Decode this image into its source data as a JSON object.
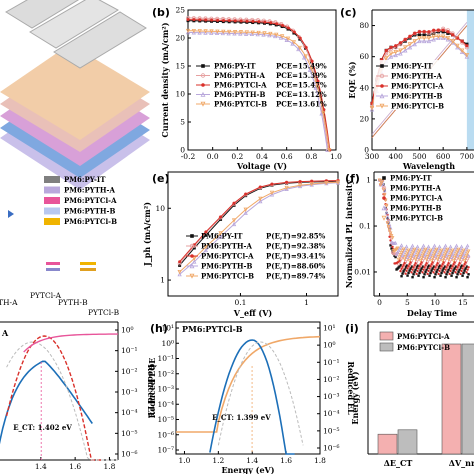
{
  "colors": {
    "black": "#111111",
    "pink": "#e6a0a0",
    "red": "#d9302a",
    "lavender": "#b9a8dc",
    "orange": "#f0a868",
    "magenta": "#e8559a",
    "gold": "#f0b400",
    "gray": "#7f7f7f",
    "blue": "#1c6fb8",
    "lightblue": "#a9d3ee"
  },
  "panels": {
    "b": {
      "label": "(b)",
      "xlabel": "Voltage (V)",
      "ylabel": "Current density (mA/cm²)",
      "xticks": [
        "-0.2",
        "0.0",
        "0.2",
        "0.4",
        "0.6",
        "0.8",
        "1.0"
      ],
      "yticks": [
        "0",
        "5",
        "10",
        "15",
        "20",
        "25"
      ],
      "legend": [
        {
          "name": "PM6:PY-IT",
          "pce": "PCE=15.49%"
        },
        {
          "name": "PM6:PYTH-A",
          "pce": "PCE=15.39%"
        },
        {
          "name": "PM6:PYTCl-A",
          "pce": "PCE=15.47%"
        },
        {
          "name": "PM6:PYTH-B",
          "pce": "PCE=13.12%"
        },
        {
          "name": "PM6:PYTCl-B",
          "pce": "PCE=13.61%"
        }
      ]
    },
    "c": {
      "label": "(c)",
      "xlabel": "Wavelength",
      "ylabel": "EQE (%)",
      "xticks": [
        "300",
        "400",
        "500",
        "600",
        "700"
      ],
      "yticks": [
        "0",
        "20",
        "40",
        "60",
        "80"
      ],
      "legend": [
        "PM6:PY-IT",
        "PM6:PYTH-A",
        "PM6:PYTCl-A",
        "PM6:PYTH-B",
        "PM6:PYTCl-B"
      ]
    },
    "d": {
      "legend": [
        "PM6:PY-IT",
        "PM6:PYTH-A",
        "PM6:PYTCl-A",
        "PM6:PYTH-B",
        "PM6:PYTCl-B"
      ],
      "labels": [
        "TH-A",
        "PYTCl-A",
        "PYTH-B",
        "PYTCl-B"
      ]
    },
    "e": {
      "label": "(e)",
      "xlabel": "V_eff (V)",
      "ylabel": "J_ph (mA/cm²)",
      "xticks": [
        "0.1",
        "1"
      ],
      "yticks": [
        "1",
        "10"
      ],
      "legend": [
        {
          "name": "PM6:PY-IT",
          "p": "P(E,T)=92.85%"
        },
        {
          "name": "PM6:PYTH-A",
          "p": "P(E,T)=92.38%"
        },
        {
          "name": "PM6:PYTCl-A",
          "p": "P(E,T)=93.41%"
        },
        {
          "name": "PM6:PYTH-B",
          "p": "P(E,T)=88.60%"
        },
        {
          "name": "PM6:PYTCl-B",
          "p": "P(E,T)=89.74%"
        }
      ]
    },
    "f": {
      "label": "(f)",
      "xlabel": "Delay Time",
      "ylabel": "Normalized PL intensity",
      "xticks": [
        "0",
        "5",
        "10",
        "15"
      ],
      "yticks": [
        "0.01",
        "0.1",
        "1"
      ],
      "legend": [
        "PM6:PY-IT",
        "PM6:PYTH-A",
        "PM6:PYTCl-A",
        "PM6:PYTH-B",
        "PM6:PYTCl-B"
      ]
    },
    "g": {
      "tag": "A",
      "xticks": [
        "1.4",
        "1.6",
        "1.8"
      ],
      "y2label": "Reduced EL",
      "y2ticks": [
        "10⁰",
        "10⁻¹",
        "10⁻²",
        "10⁻³",
        "10⁻⁴",
        "10⁻⁵",
        "10⁻⁶"
      ],
      "ect": "E_CT: 1.402 eV"
    },
    "h": {
      "label": "(h)",
      "title": "PM6:PYTCl-B",
      "xlabel": "Energy (eV)",
      "ylabel": "Reduced EQE",
      "y2label": "Reduced EL",
      "xticks": [
        "1.0",
        "1.2",
        "1.4",
        "1.6",
        "1.8"
      ],
      "yticks": [
        "10¹",
        "10⁰",
        "10⁻¹",
        "10⁻²",
        "10⁻³",
        "10⁻⁴",
        "10⁻⁵",
        "10⁻⁶",
        "10⁻⁷"
      ],
      "y2ticks": [
        "10¹",
        "10⁰",
        "10⁻¹",
        "10⁻²",
        "10⁻³",
        "10⁻⁴",
        "10⁻⁵",
        "10⁻⁶"
      ],
      "ect": "E_CT: 1.399 eV"
    },
    "i": {
      "label": "(i)",
      "ylabel": "Energy (eV)",
      "legend": [
        "PM6:PYTCl-A",
        "PM6:PYTCl-B"
      ],
      "xcats": [
        "ΔE_CT",
        "ΔV_nr"
      ]
    }
  },
  "chart_data": [
    {
      "type": "line",
      "panel": "b",
      "xlabel": "Voltage (V)",
      "ylabel": "Current density (mA/cm²)",
      "xlim": [
        -0.2,
        1.0
      ],
      "ylim": [
        0,
        25
      ],
      "series": [
        {
          "name": "PM6:PY-IT",
          "jsc": 23.1,
          "voc": 0.945,
          "shape": [
            23.1,
            22.9,
            22.5,
            21.4,
            17.0,
            9.0,
            0
          ],
          "x": [
            -0.2,
            0.0,
            0.2,
            0.4,
            0.6,
            0.8,
            0.945
          ]
        },
        {
          "name": "PM6:PYTH-A",
          "jsc": 23.6,
          "voc": 0.935,
          "x": [
            -0.2,
            0.0,
            0.2,
            0.4,
            0.6,
            0.8,
            0.935
          ],
          "values": [
            23.6,
            23.4,
            22.9,
            21.6,
            17.0,
            8.5,
            0
          ]
        },
        {
          "name": "PM6:PYTCl-A",
          "jsc": 23.3,
          "voc": 0.95,
          "x": [
            -0.2,
            0.0,
            0.2,
            0.4,
            0.6,
            0.8,
            0.95
          ],
          "values": [
            23.3,
            23.1,
            22.7,
            21.5,
            17.2,
            9.2,
            0
          ]
        },
        {
          "name": "PM6:PYTH-B",
          "jsc": 21.0,
          "voc": 0.93,
          "x": [
            -0.2,
            0.0,
            0.2,
            0.4,
            0.6,
            0.8,
            0.93
          ],
          "values": [
            21.0,
            20.7,
            20.0,
            18.4,
            14.5,
            7.2,
            0
          ]
        },
        {
          "name": "PM6:PYTCl-B",
          "jsc": 21.3,
          "voc": 0.945,
          "x": [
            -0.2,
            0.0,
            0.2,
            0.4,
            0.6,
            0.8,
            0.945
          ],
          "values": [
            21.3,
            21.0,
            20.4,
            19.0,
            15.2,
            7.8,
            0
          ]
        }
      ]
    },
    {
      "type": "line",
      "panel": "c",
      "xlabel": "Wavelength",
      "ylabel": "EQE (%)",
      "xlim": [
        300,
        700
      ],
      "ylim": [
        0,
        90
      ],
      "x": [
        300,
        320,
        340,
        360,
        380,
        400,
        420,
        440,
        460,
        480,
        500,
        520,
        540,
        560,
        580,
        600,
        620,
        640,
        660,
        680,
        700
      ],
      "series": [
        {
          "name": "PM6:PY-IT",
          "values": [
            30,
            45,
            58,
            64,
            66,
            66,
            68,
            70,
            72,
            74,
            74,
            74,
            74,
            75,
            76,
            76,
            75,
            74,
            72,
            70,
            68
          ]
        },
        {
          "name": "PM6:PYTH-A",
          "values": [
            28,
            42,
            55,
            62,
            65,
            66,
            68,
            71,
            73,
            75,
            76,
            76,
            75,
            76,
            77,
            78,
            77,
            75,
            72,
            69,
            66
          ]
        },
        {
          "name": "PM6:PYTCl-A",
          "values": [
            30,
            46,
            58,
            64,
            66,
            67,
            69,
            71,
            73,
            75,
            76,
            76,
            76,
            77,
            77,
            77,
            76,
            74,
            72,
            70,
            67
          ]
        },
        {
          "name": "PM6:PYTH-B",
          "values": [
            26,
            38,
            50,
            57,
            60,
            61,
            62,
            64,
            66,
            68,
            70,
            70,
            70,
            71,
            72,
            72,
            71,
            69,
            66,
            63,
            60
          ]
        },
        {
          "name": "PM6:PYTCl-B",
          "values": [
            27,
            40,
            52,
            59,
            62,
            63,
            64,
            66,
            68,
            70,
            72,
            72,
            72,
            73,
            73,
            73,
            72,
            70,
            67,
            64,
            61
          ]
        }
      ]
    },
    {
      "type": "line",
      "panel": "e",
      "xlabel": "V_eff (V)",
      "ylabel": "J_ph (mA/cm²)",
      "xscale": "log",
      "yscale": "log",
      "xlim": [
        0.01,
        3
      ],
      "ylim": [
        1,
        30
      ],
      "x": [
        0.012,
        0.02,
        0.03,
        0.05,
        0.08,
        0.12,
        0.2,
        0.3,
        0.5,
        0.8,
        1.2,
        2.0,
        3.0
      ],
      "series": [
        {
          "name": "PM6:PY-IT",
          "values": [
            1.6,
            2.8,
            4.2,
            7.0,
            11.0,
            15.0,
            19.0,
            21.0,
            22.3,
            22.9,
            23.2,
            23.5,
            23.7
          ]
        },
        {
          "name": "PM6:PYTH-A",
          "values": [
            1.7,
            3.0,
            4.6,
            7.4,
            11.5,
            15.5,
            19.5,
            21.5,
            22.8,
            23.4,
            23.7,
            24.0,
            24.2
          ]
        },
        {
          "name": "PM6:PYTCl-A",
          "values": [
            1.8,
            3.1,
            4.7,
            7.6,
            11.8,
            15.8,
            19.8,
            21.7,
            22.9,
            23.5,
            23.8,
            24.1,
            24.3
          ]
        },
        {
          "name": "PM6:PYTH-B",
          "values": [
            1.2,
            1.8,
            2.6,
            4.0,
            6.0,
            8.6,
            12.5,
            15.5,
            18.5,
            20.3,
            21.3,
            22.2,
            22.7
          ]
        },
        {
          "name": "PM6:PYTCl-B",
          "values": [
            1.3,
            2.0,
            2.9,
            4.5,
            6.8,
            9.6,
            13.6,
            16.5,
            19.3,
            20.9,
            21.8,
            22.6,
            23.0
          ]
        }
      ]
    },
    {
      "type": "scatter",
      "panel": "f",
      "xlabel": "Delay Time",
      "ylabel": "Normalized PL intensity",
      "yscale": "log",
      "xlim": [
        -1,
        17
      ],
      "ylim": [
        0.003,
        1.5
      ],
      "series": [
        {
          "name": "PM6:PY-IT",
          "decay": 0.011
        },
        {
          "name": "PM6:PYTH-A",
          "decay": 0.018
        },
        {
          "name": "PM6:PYTCl-A",
          "decay": 0.013
        },
        {
          "name": "PM6:PYTH-B",
          "decay": 0.03
        },
        {
          "name": "PM6:PYTCl-B",
          "decay": 0.025
        }
      ]
    },
    {
      "type": "line",
      "panel": "g",
      "xlabel": "Energy (eV)",
      "ylabel": "Reduced EL",
      "xlim": [
        1.15,
        1.85
      ],
      "ect": 1.402,
      "series": [
        {
          "name": "Reduced EQE"
        },
        {
          "name": "Reduced EL"
        },
        {
          "name": "fit"
        }
      ]
    },
    {
      "type": "line",
      "panel": "h",
      "title": "PM6:PYTCl-B",
      "xlabel": "Energy (eV)",
      "ylabel": "Reduced EQE",
      "xlim": [
        0.95,
        1.8
      ],
      "ect": 1.399,
      "series": [
        {
          "name": "Reduced EQE"
        },
        {
          "name": "Reduced EL"
        },
        {
          "name": "fit"
        }
      ]
    },
    {
      "type": "bar",
      "panel": "i",
      "ylabel": "Energy (eV)",
      "categories": [
        "ΔE_CT",
        "ΔV_nr"
      ],
      "ylim": [
        0,
        0.3
      ],
      "series": [
        {
          "name": "PM6:PYTCl-A",
          "values": [
            0.045,
            0.25
          ]
        },
        {
          "name": "PM6:PYTCl-B",
          "values": [
            0.055,
            0.25
          ]
        }
      ]
    }
  ]
}
